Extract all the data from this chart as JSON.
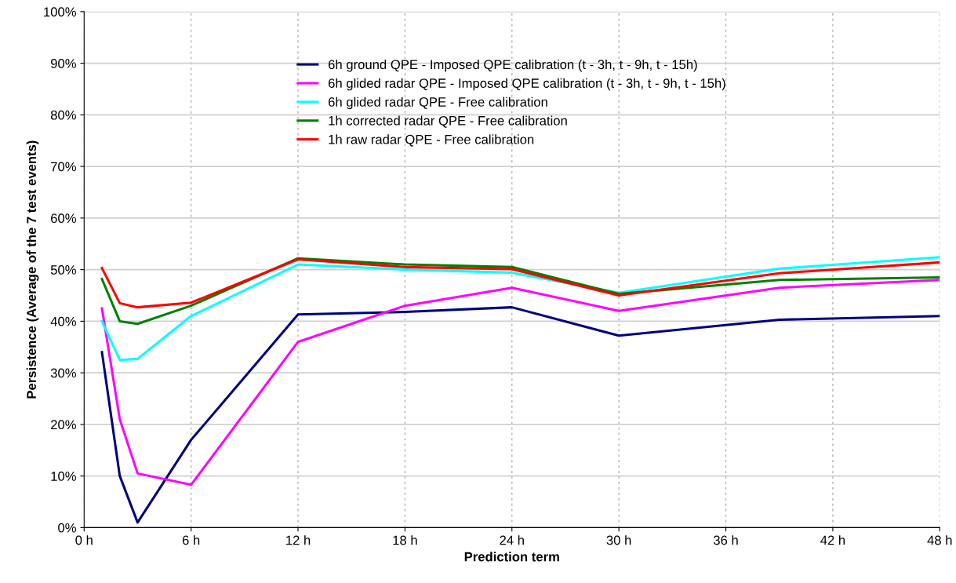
{
  "chart_data": {
    "type": "line",
    "xlabel": "Prediction term",
    "ylabel": "Persistence (Average of the 7 test events)",
    "x": [
      1,
      2,
      3,
      6,
      12,
      18,
      24,
      30,
      39,
      48
    ],
    "series": [
      {
        "name": "6h ground QPE - Imposed QPE calibration (t - 3h, t - 9h, t - 15h)",
        "color": "#000080",
        "values": [
          34,
          10,
          1,
          17,
          41.3,
          41.8,
          42.7,
          37.2,
          40.3,
          41
        ]
      },
      {
        "name": "6h glided radar QPE - Imposed QPE calibration (t - 3h, t - 9h, t - 15h)",
        "color": "#ff00ff",
        "values": [
          42.5,
          21,
          10.5,
          8.3,
          36,
          43,
          46.5,
          42,
          46.5,
          48
        ]
      },
      {
        "name": "6h glided radar QPE - Free calibration",
        "color": "#00ffff",
        "values": [
          40,
          32.5,
          32.7,
          41,
          51,
          50,
          49.4,
          45.5,
          50.2,
          52.4
        ]
      },
      {
        "name": "1h corrected radar QPE - Free calibration",
        "color": "#008000",
        "values": [
          48.2,
          40,
          39.5,
          43,
          52.2,
          51,
          50.5,
          45.3,
          48,
          48.5
        ]
      },
      {
        "name": "1h raw radar QPE - Free calibration",
        "color": "#ff0000",
        "values": [
          50.3,
          43.5,
          42.7,
          43.6,
          52,
          50.5,
          50.1,
          45,
          49.3,
          51.4
        ]
      }
    ],
    "xlim": [
      0,
      48
    ],
    "xticks": [
      {
        "value": 0,
        "label": "0 h"
      },
      {
        "value": 6,
        "label": "6 h"
      },
      {
        "value": 12,
        "label": "12 h"
      },
      {
        "value": 18,
        "label": "18 h"
      },
      {
        "value": 24,
        "label": "24 h"
      },
      {
        "value": 30,
        "label": "30 h"
      },
      {
        "value": 36,
        "label": "36 h"
      },
      {
        "value": 42,
        "label": "42 h"
      },
      {
        "value": 48,
        "label": "48 h"
      }
    ],
    "ylim": [
      0,
      100
    ],
    "yticks": [
      {
        "value": 0,
        "label": "0%"
      },
      {
        "value": 10,
        "label": "10%"
      },
      {
        "value": 20,
        "label": "20%"
      },
      {
        "value": 30,
        "label": "30%"
      },
      {
        "value": 40,
        "label": "40%"
      },
      {
        "value": 50,
        "label": "50%"
      },
      {
        "value": 60,
        "label": "60%"
      },
      {
        "value": 70,
        "label": "70%"
      },
      {
        "value": 80,
        "label": "80%"
      },
      {
        "value": 90,
        "label": "90%"
      },
      {
        "value": 100,
        "label": "100%"
      }
    ],
    "grid": true,
    "legend": "top",
    "marker": "none",
    "line_style": "solid"
  }
}
